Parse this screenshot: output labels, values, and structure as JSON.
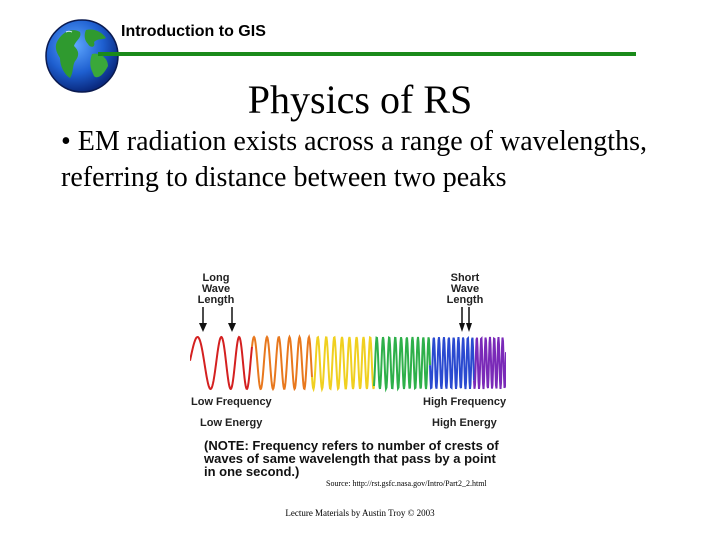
{
  "header": {
    "course_title": "Introduction to GIS",
    "rule_color": "#1a8a1a",
    "logo_icon": "globe-icon"
  },
  "slide": {
    "title": "Physics of RS",
    "bullet": "• EM radiation exists across a range of wavelengths, referring to distance between two peaks"
  },
  "diagram": {
    "long_wave_label": [
      "Long",
      "Wave",
      "Length"
    ],
    "short_wave_label": [
      "Short",
      "Wave",
      "Length"
    ],
    "low_frequency": "Low Frequency",
    "high_frequency": "High Frequency",
    "low_energy": "Low Energy",
    "high_energy": "High Energy",
    "note": "(NOTE: Frequency refers to number of crests of waves of same wavelength that pass by a point in one second.)",
    "wave_colors": [
      "#d42020",
      "#e8781e",
      "#f0d020",
      "#2eb04a",
      "#2a4ad0",
      "#7a2ab8"
    ]
  },
  "source": "Source: http://rst.gsfc.nasa.gov/Intro/Part2_2.html",
  "footer": "Lecture Materials by Austin Troy © 2003"
}
